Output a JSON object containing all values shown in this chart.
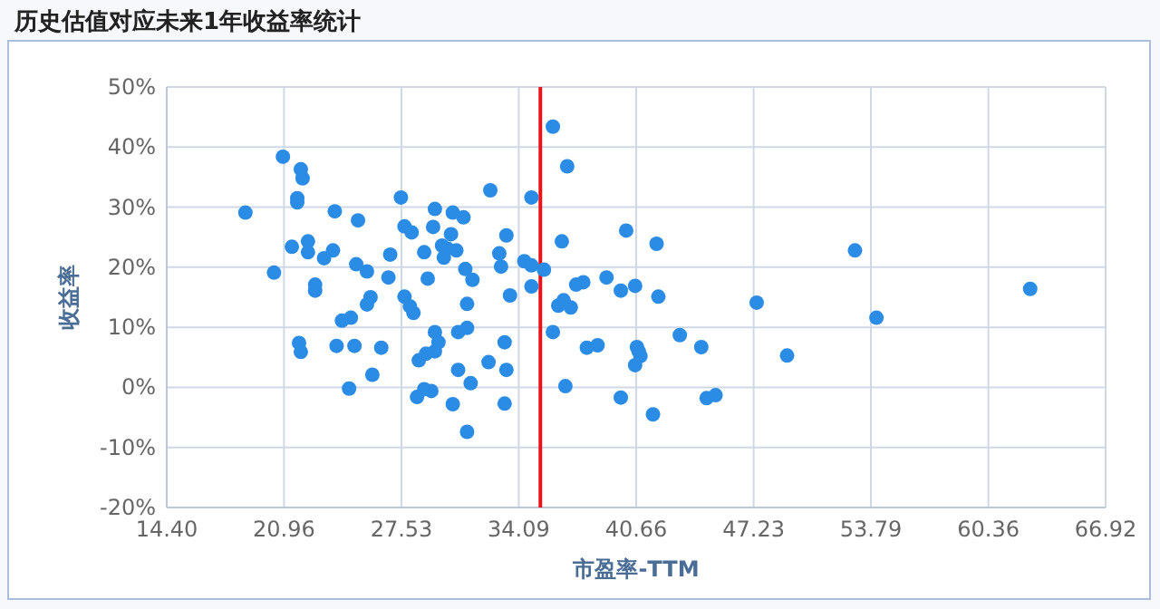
{
  "chart_data": {
    "type": "scatter",
    "title": "历史估值对应未来1年收益率统计",
    "xlabel": "市盈率-TTM",
    "ylabel": "收益率",
    "color": "#2b8ce6",
    "marker": "circle",
    "grid": true,
    "xlim": [
      14.4,
      66.92
    ],
    "ylim": [
      -20,
      50
    ],
    "xticks": [
      {
        "value": 14.4,
        "label": "14.40"
      },
      {
        "value": 20.96,
        "label": "20.96"
      },
      {
        "value": 27.53,
        "label": "27.53"
      },
      {
        "value": 34.09,
        "label": "34.09"
      },
      {
        "value": 40.66,
        "label": "40.66"
      },
      {
        "value": 47.23,
        "label": "47.23"
      },
      {
        "value": 53.79,
        "label": "53.79"
      },
      {
        "value": 60.36,
        "label": "60.36"
      },
      {
        "value": 66.92,
        "label": "66.92"
      }
    ],
    "yticks": [
      {
        "value": -20,
        "label": "-20%"
      },
      {
        "value": -10,
        "label": "-10%"
      },
      {
        "value": 0,
        "label": "0%"
      },
      {
        "value": 10,
        "label": "10%"
      },
      {
        "value": 20,
        "label": "20%"
      },
      {
        "value": 30,
        "label": "30%"
      },
      {
        "value": 40,
        "label": "40%"
      },
      {
        "value": 50,
        "label": "50%"
      }
    ],
    "ref_lines": [
      {
        "axis": "x",
        "value": 35.3,
        "color": "#e8141b"
      }
    ],
    "x": [
      18.8,
      20.9,
      20.4,
      21.9,
      22.0,
      21.7,
      21.7,
      21.4,
      22.3,
      22.3,
      22.7,
      22.7,
      21.8,
      21.9,
      23.2,
      23.8,
      23.7,
      25.1,
      25.0,
      25.6,
      24.2,
      24.7,
      23.9,
      24.9,
      25.8,
      25.6,
      26.4,
      25.9,
      24.6,
      26.9,
      26.8,
      27.5,
      27.7,
      28.1,
      27.7,
      28.0,
      28.2,
      28.8,
      29.0,
      28.5,
      28.9,
      28.4,
      28.8,
      29.2,
      29.4,
      29.4,
      29.3,
      30.4,
      31.0,
      30.3,
      29.8,
      30.1,
      30.6,
      29.9,
      31.1,
      31.5,
      31.2,
      30.7,
      31.2,
      29.6,
      29.4,
      30.4,
      30.7,
      31.4,
      31.2,
      32.5,
      33.4,
      33.0,
      33.1,
      33.6,
      33.3,
      33.4,
      32.4,
      33.3,
      36.0,
      36.8,
      34.8,
      36.5,
      34.4,
      34.8,
      35.5,
      34.8,
      36.0,
      36.7,
      36.3,
      36.6,
      37.0,
      37.3,
      37.7,
      39.0,
      39.8,
      40.6,
      40.1,
      41.8,
      41.9,
      37.9,
      38.5,
      40.7,
      40.8,
      40.9,
      40.6,
      43.1,
      44.3,
      39.8,
      41.6,
      44.6,
      45.1,
      47.4,
      49.1,
      52.9,
      54.1,
      62.7
    ],
    "values": [
      29.1,
      38.4,
      19.1,
      36.3,
      34.8,
      31.5,
      30.8,
      23.4,
      24.3,
      22.5,
      17.1,
      16.1,
      7.4,
      5.9,
      21.5,
      29.3,
      22.8,
      27.8,
      20.5,
      19.3,
      11.1,
      11.6,
      6.9,
      6.9,
      15.0,
      13.8,
      6.6,
      2.1,
      -0.2,
      22.1,
      18.3,
      31.6,
      26.8,
      25.8,
      15.1,
      13.5,
      12.4,
      22.5,
      18.1,
      4.5,
      5.6,
      -1.6,
      -0.3,
      -0.6,
      9.2,
      29.7,
      26.7,
      29.1,
      28.3,
      25.5,
      23.6,
      23.1,
      22.8,
      21.6,
      19.7,
      17.9,
      13.9,
      9.2,
      9.9,
      7.5,
      6.0,
      -2.8,
      2.9,
      0.7,
      -7.4,
      32.8,
      25.3,
      22.3,
      20.1,
      15.3,
      7.5,
      2.9,
      4.2,
      -2.7,
      43.4,
      36.8,
      31.6,
      24.3,
      21.0,
      20.3,
      19.6,
      16.8,
      9.2,
      0.2,
      13.6,
      14.5,
      13.3,
      17.1,
      17.5,
      18.3,
      16.1,
      16.9,
      26.1,
      23.9,
      15.1,
      6.6,
      7.0,
      6.7,
      6.0,
      5.2,
      3.7,
      8.7,
      6.7,
      -1.7,
      -4.5,
      -1.8,
      -1.3,
      14.1,
      5.3,
      22.8,
      11.6,
      16.4
    ]
  }
}
